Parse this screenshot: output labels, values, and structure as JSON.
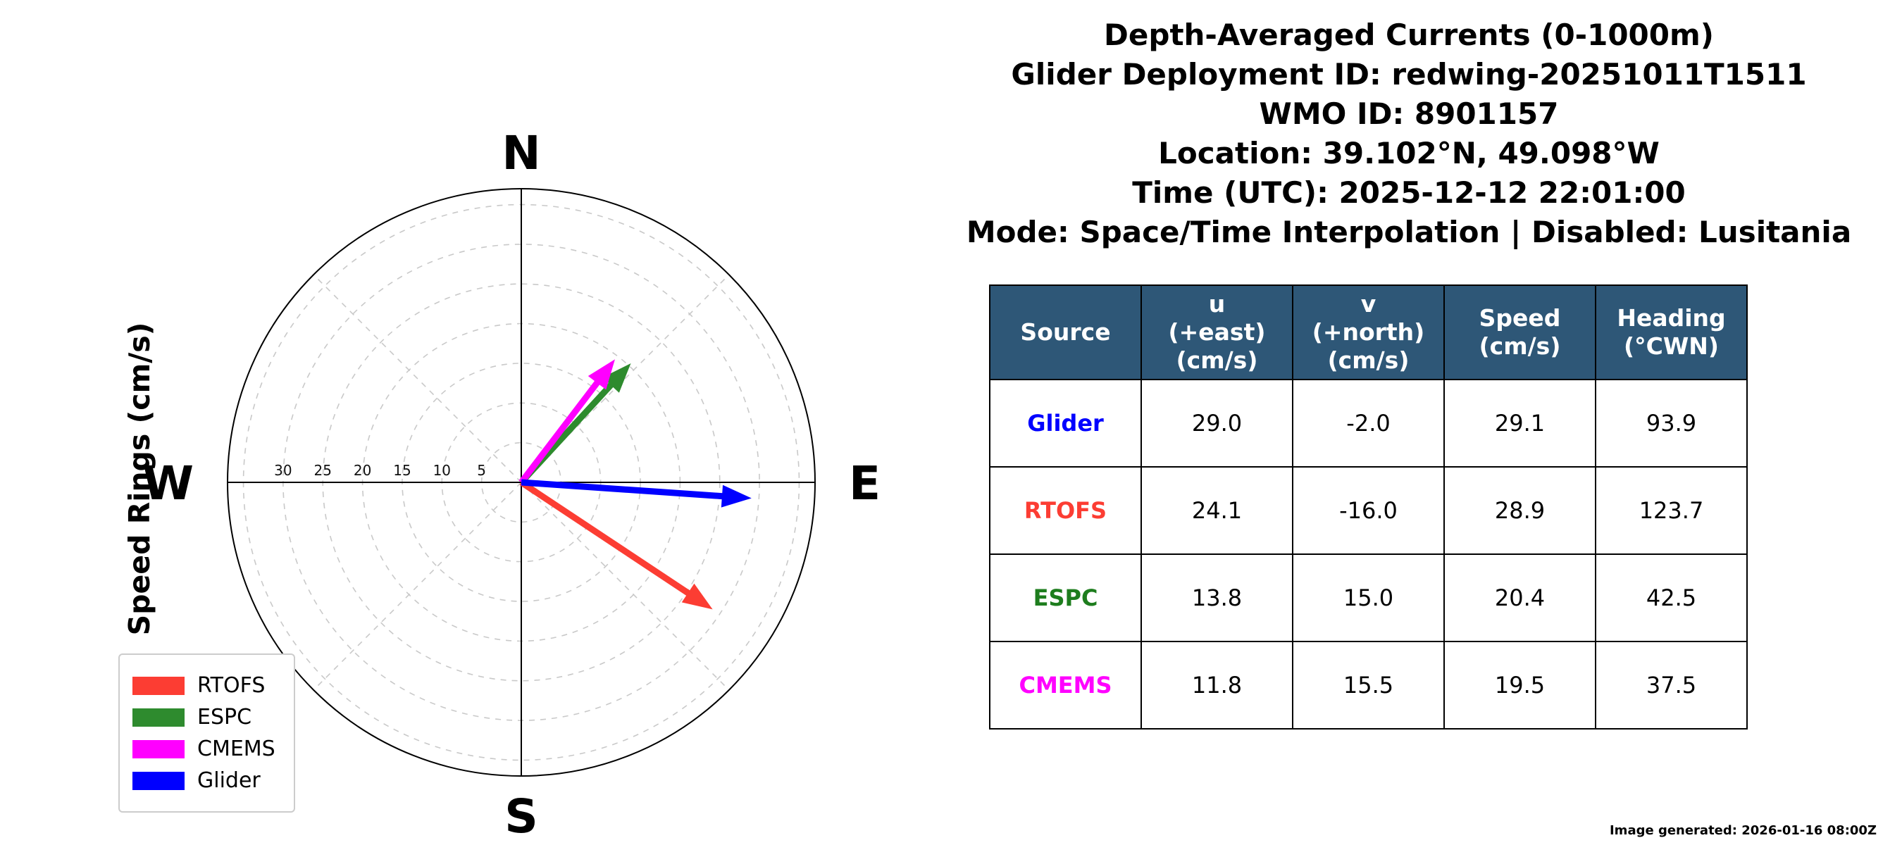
{
  "title_block": {
    "lines": [
      "Depth-Averaged Currents (0-1000m)",
      "Glider Deployment ID: redwing-20251011T1511",
      "WMO ID: 8901157",
      "Location: 39.102°N, 49.098°W",
      "Time (UTC): 2025-12-12 22:01:00",
      "Mode: Space/Time Interpolation | Disabled: Lusitania"
    ]
  },
  "compass": {
    "cardinals": {
      "n": "N",
      "e": "E",
      "s": "S",
      "w": "W"
    },
    "axis_label": "Speed Rings (cm/s)",
    "ring_labels": [
      "30",
      "25",
      "20",
      "15",
      "10",
      "5"
    ],
    "ring_values": [
      5,
      10,
      15,
      20,
      25,
      30,
      35
    ],
    "r_max": 37
  },
  "legend": {
    "items": [
      {
        "label": "RTOFS",
        "color": "#fc3d33"
      },
      {
        "label": "ESPC",
        "color": "#2e8b2e"
      },
      {
        "label": "CMEMS",
        "color": "#ff00ff"
      },
      {
        "label": "Glider",
        "color": "#0000ff"
      }
    ]
  },
  "table": {
    "headers": [
      "Source",
      "u\n(+east)\n(cm/s)",
      "v\n(+north)\n(cm/s)",
      "Speed\n(cm/s)",
      "Heading\n(°CWN)"
    ],
    "rows": [
      {
        "source": "Glider",
        "color": "#0000ff",
        "u": "29.0",
        "v": "-2.0",
        "speed": "29.1",
        "heading": "93.9"
      },
      {
        "source": "RTOFS",
        "color": "#fc3d33",
        "u": "24.1",
        "v": "-16.0",
        "speed": "28.9",
        "heading": "123.7"
      },
      {
        "source": "ESPC",
        "color": "#1e7d1e",
        "u": "13.8",
        "v": "15.0",
        "speed": "20.4",
        "heading": "42.5"
      },
      {
        "source": "CMEMS",
        "color": "#ff00ff",
        "u": "11.8",
        "v": "15.5",
        "speed": "19.5",
        "heading": "37.5"
      }
    ]
  },
  "chart_data": {
    "type": "polar_vector",
    "title": "Depth-Averaged Currents (0-1000m)",
    "units": "cm/s",
    "heading_convention": "degrees clockwise from north",
    "ring_values": [
      5,
      10,
      15,
      20,
      25,
      30,
      35
    ],
    "r_max": 37,
    "series": [
      {
        "name": "Glider",
        "u": 29.0,
        "v": -2.0,
        "speed": 29.1,
        "heading": 93.9,
        "color": "#0000ff"
      },
      {
        "name": "RTOFS",
        "u": 24.1,
        "v": -16.0,
        "speed": 28.9,
        "heading": 123.7,
        "color": "#fc3d33"
      },
      {
        "name": "ESPC",
        "u": 13.8,
        "v": 15.0,
        "speed": 20.4,
        "heading": 42.5,
        "color": "#2e8b2e"
      },
      {
        "name": "CMEMS",
        "u": 11.8,
        "v": 15.5,
        "speed": 19.5,
        "heading": 37.5,
        "color": "#ff00ff"
      }
    ]
  },
  "footer": {
    "generated": "Image generated: 2026-01-16 08:00Z"
  }
}
